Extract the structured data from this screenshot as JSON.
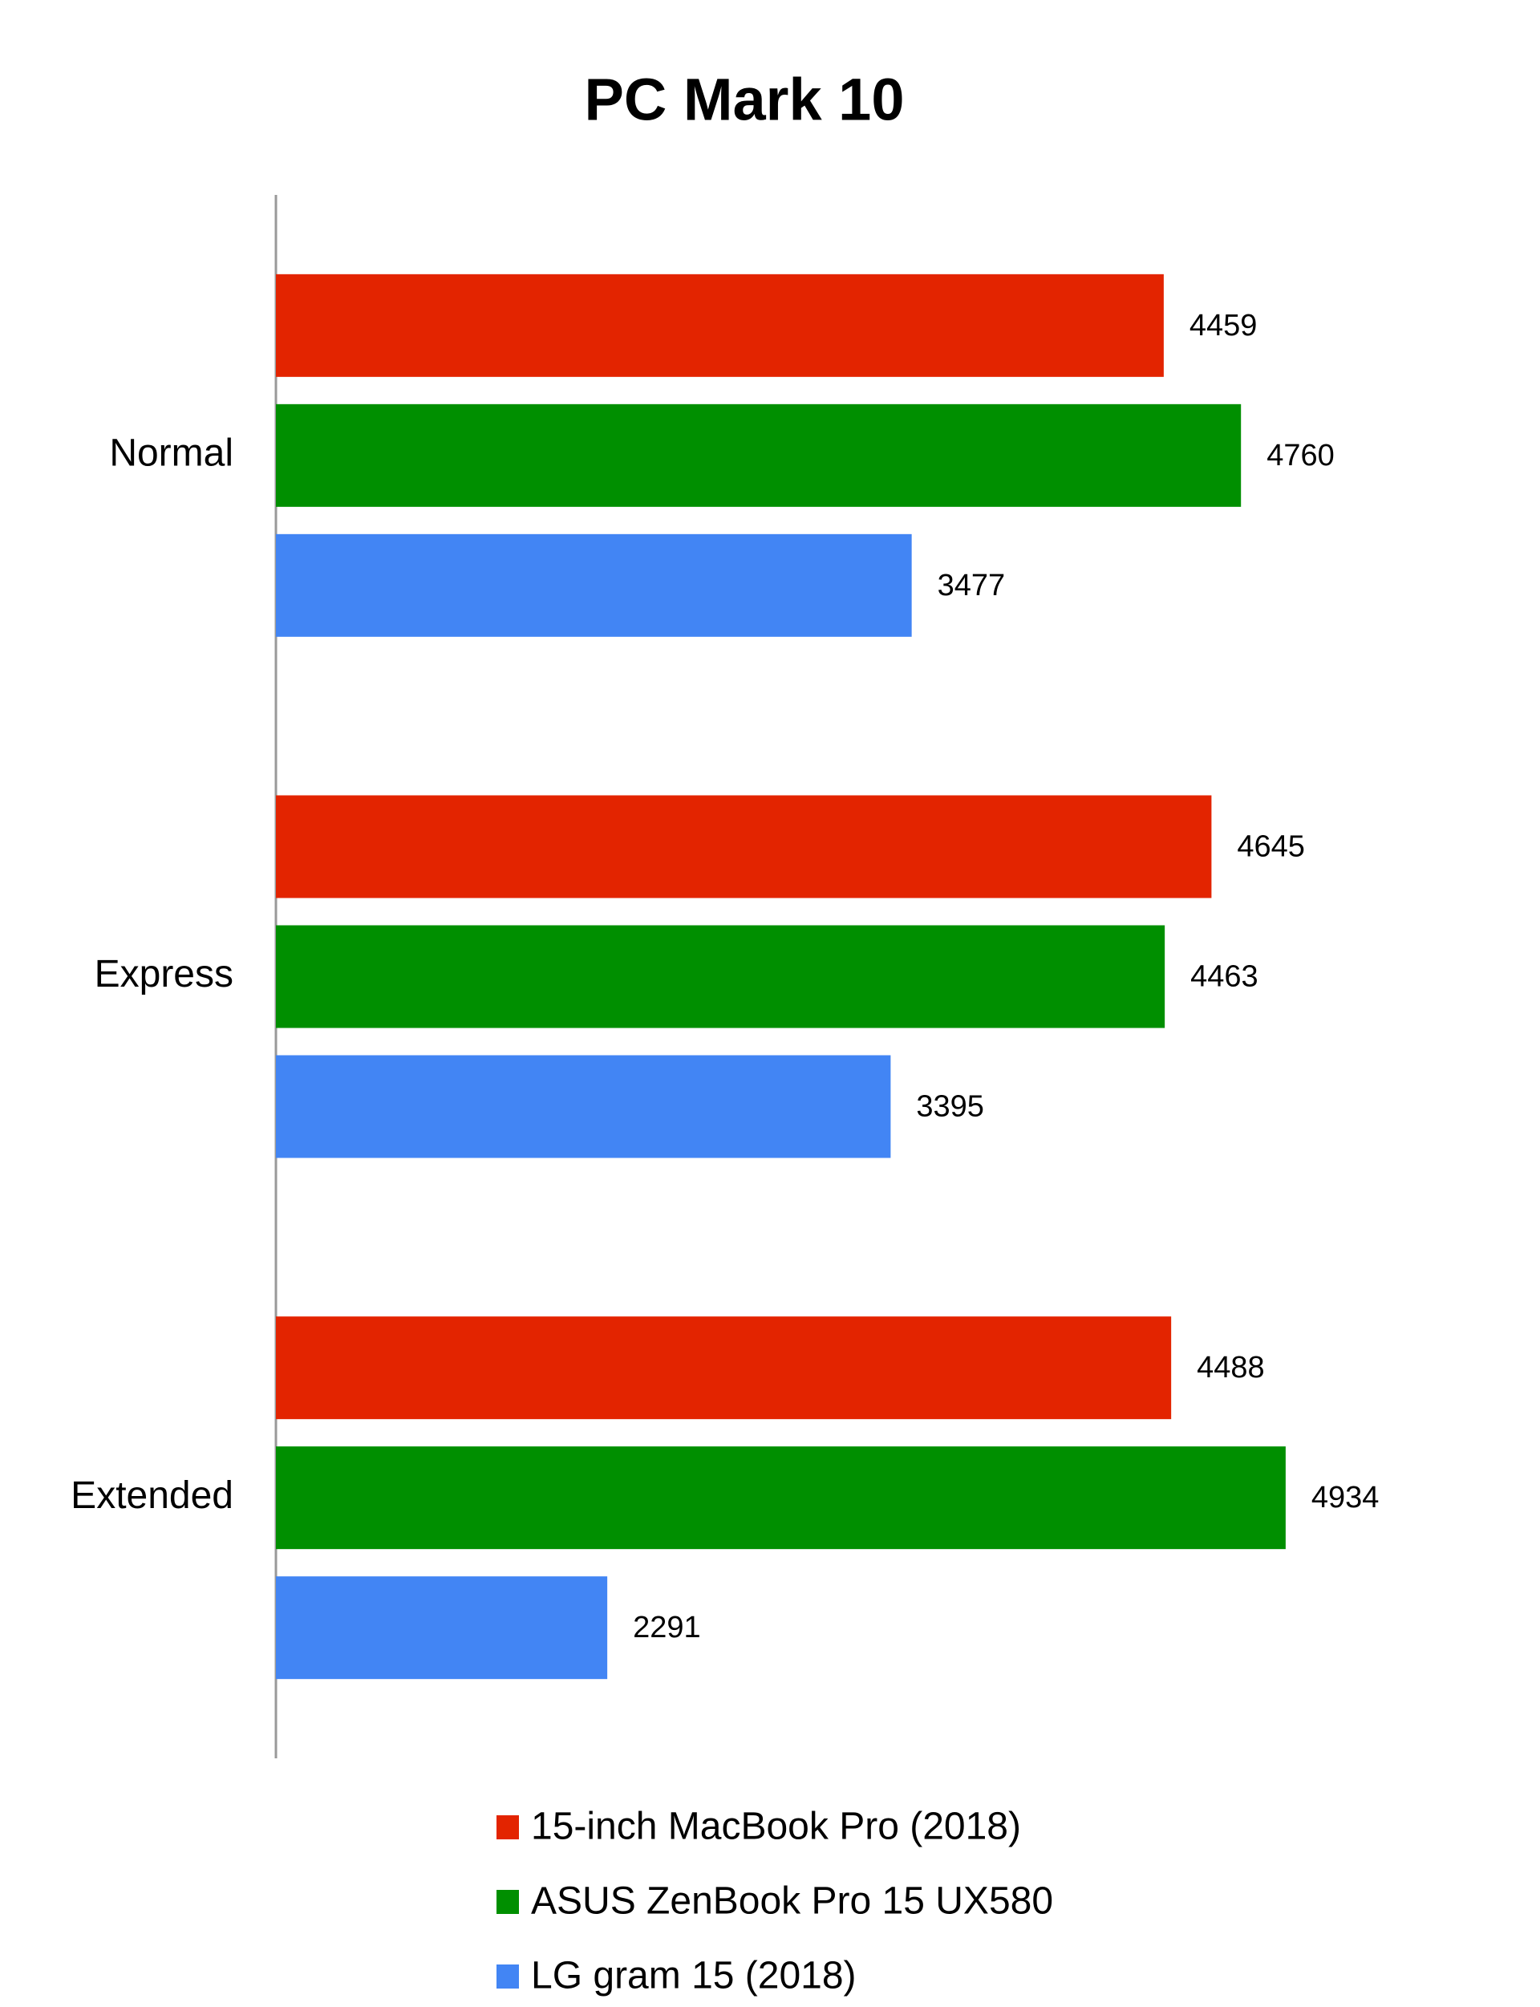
{
  "chart_data": {
    "type": "hbar",
    "title": "PC Mark 10",
    "categories": [
      "Normal",
      "Express",
      "Extended"
    ],
    "series": [
      {
        "name": "15-inch MacBook Pro (2018)",
        "color": "#e32400",
        "values": [
          4459,
          4645,
          4488
        ]
      },
      {
        "name": "ASUS ZenBook Pro 15 UX580",
        "color": "#008f00",
        "values": [
          4760,
          4463,
          4934
        ]
      },
      {
        "name": "LG gram 15 (2018)",
        "color": "#4285f4",
        "values": [
          3477,
          3395,
          2291
        ]
      }
    ],
    "xlim": [
      1000,
      5500
    ]
  }
}
